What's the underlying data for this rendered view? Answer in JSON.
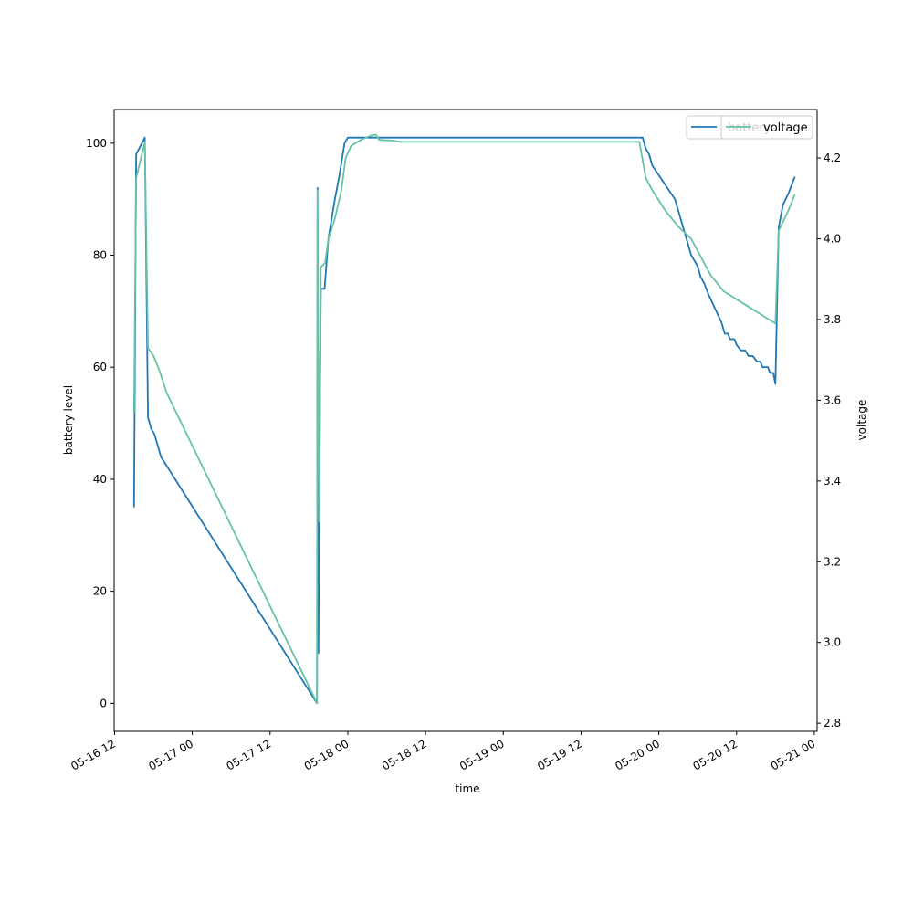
{
  "chart_data": {
    "type": "line",
    "xlabel": "time",
    "ylabel_left": "battery level",
    "ylabel_right": "voltage",
    "x_ticks": [
      "05-16 12",
      "05-17 00",
      "05-17 12",
      "05-18 00",
      "05-18 12",
      "05-19 00",
      "05-19 12",
      "05-20 00",
      "05-20 12",
      "05-21 00"
    ],
    "xlim": [
      "2023-05-16T11:56",
      "2023-05-21T00:26"
    ],
    "ylim_left": [
      -5,
      106
    ],
    "ylim_right": [
      2.78,
      4.32
    ],
    "y_ticks_left": [
      0,
      20,
      40,
      60,
      80,
      100
    ],
    "y_ticks_right": [
      2.8,
      3.0,
      3.2,
      3.4,
      3.6,
      3.8,
      4.0,
      4.2
    ],
    "grid": false,
    "legend_position": "top-right",
    "series": [
      {
        "name": "battery",
        "axis": "left",
        "color": "#1f77b4",
        "points": [
          [
            "2023-05-16T15:00",
            35
          ],
          [
            "2023-05-16T15:20",
            98
          ],
          [
            "2023-05-16T16:40",
            101
          ],
          [
            "2023-05-16T17:10",
            51
          ],
          [
            "2023-05-16T17:40",
            49
          ],
          [
            "2023-05-16T18:10",
            48
          ],
          [
            "2023-05-16T19:10",
            44
          ],
          [
            "2023-05-17T19:15",
            0
          ],
          [
            "2023-05-17T19:20",
            92
          ],
          [
            "2023-05-17T19:28",
            9
          ],
          [
            "2023-05-17T19:35",
            33
          ],
          [
            "2023-05-17T19:50",
            74
          ],
          [
            "2023-05-17T20:25",
            74
          ],
          [
            "2023-05-17T21:00",
            83
          ],
          [
            "2023-05-17T22:00",
            90
          ],
          [
            "2023-05-17T22:40",
            94
          ],
          [
            "2023-05-17T23:30",
            100
          ],
          [
            "2023-05-18T00:00",
            101
          ],
          [
            "2023-05-19T21:30",
            101
          ],
          [
            "2023-05-19T22:00",
            99
          ],
          [
            "2023-05-19T22:30",
            98
          ],
          [
            "2023-05-19T23:00",
            96
          ],
          [
            "2023-05-20T02:30",
            90
          ],
          [
            "2023-05-20T04:00",
            84
          ],
          [
            "2023-05-20T05:00",
            80
          ],
          [
            "2023-05-20T06:00",
            78
          ],
          [
            "2023-05-20T06:30",
            76
          ],
          [
            "2023-05-20T07:00",
            75
          ],
          [
            "2023-05-20T07:40",
            73
          ],
          [
            "2023-05-20T09:40",
            68
          ],
          [
            "2023-05-20T10:10",
            66
          ],
          [
            "2023-05-20T10:40",
            66
          ],
          [
            "2023-05-20T11:00",
            65
          ],
          [
            "2023-05-20T11:40",
            65
          ],
          [
            "2023-05-20T12:00",
            64
          ],
          [
            "2023-05-20T12:40",
            63
          ],
          [
            "2023-05-20T13:20",
            63
          ],
          [
            "2023-05-20T13:50",
            62
          ],
          [
            "2023-05-20T14:30",
            62
          ],
          [
            "2023-05-20T15:10",
            61
          ],
          [
            "2023-05-20T15:40",
            61
          ],
          [
            "2023-05-20T16:00",
            60
          ],
          [
            "2023-05-20T16:50",
            60
          ],
          [
            "2023-05-20T17:10",
            59
          ],
          [
            "2023-05-20T17:40",
            59
          ],
          [
            "2023-05-20T18:00",
            57
          ],
          [
            "2023-05-20T18:30",
            85
          ],
          [
            "2023-05-20T19:10",
            89
          ],
          [
            "2023-05-20T20:00",
            91
          ],
          [
            "2023-05-20T21:00",
            94
          ]
        ]
      },
      {
        "name": "voltage",
        "axis": "right",
        "color": "#66c2a5",
        "points": [
          [
            "2023-05-16T15:00",
            3.57
          ],
          [
            "2023-05-16T15:20",
            4.15
          ],
          [
            "2023-05-16T16:40",
            4.24
          ],
          [
            "2023-05-16T17:10",
            3.73
          ],
          [
            "2023-05-16T18:00",
            3.71
          ],
          [
            "2023-05-16T19:00",
            3.67
          ],
          [
            "2023-05-16T20:00",
            3.62
          ],
          [
            "2023-05-17T19:15",
            2.85
          ],
          [
            "2023-05-17T19:20",
            4.12
          ],
          [
            "2023-05-17T19:35",
            3.3
          ],
          [
            "2023-05-17T19:50",
            3.93
          ],
          [
            "2023-05-17T20:30",
            3.94
          ],
          [
            "2023-05-17T21:00",
            4.0
          ],
          [
            "2023-05-17T22:00",
            4.05
          ],
          [
            "2023-05-17T23:00",
            4.12
          ],
          [
            "2023-05-17T23:40",
            4.2
          ],
          [
            "2023-05-18T00:30",
            4.23
          ],
          [
            "2023-05-18T02:00",
            4.245
          ],
          [
            "2023-05-18T03:30",
            4.255
          ],
          [
            "2023-05-18T04:20",
            4.258
          ],
          [
            "2023-05-18T04:50",
            4.245
          ],
          [
            "2023-05-18T07:00",
            4.243
          ],
          [
            "2023-05-18T08:00",
            4.24
          ],
          [
            "2023-05-19T21:00",
            4.24
          ],
          [
            "2023-05-19T22:00",
            4.15
          ],
          [
            "2023-05-19T23:00",
            4.12
          ],
          [
            "2023-05-20T01:00",
            4.07
          ],
          [
            "2023-05-20T03:00",
            4.03
          ],
          [
            "2023-05-20T05:00",
            4.0
          ],
          [
            "2023-05-20T06:00",
            3.97
          ],
          [
            "2023-05-20T08:00",
            3.91
          ],
          [
            "2023-05-20T10:00",
            3.87
          ],
          [
            "2023-05-20T12:00",
            3.85
          ],
          [
            "2023-05-20T14:00",
            3.83
          ],
          [
            "2023-05-20T16:00",
            3.81
          ],
          [
            "2023-05-20T18:00",
            3.79
          ],
          [
            "2023-05-20T18:30",
            4.02
          ],
          [
            "2023-05-20T20:00",
            4.07
          ],
          [
            "2023-05-20T21:00",
            4.11
          ]
        ]
      }
    ]
  }
}
